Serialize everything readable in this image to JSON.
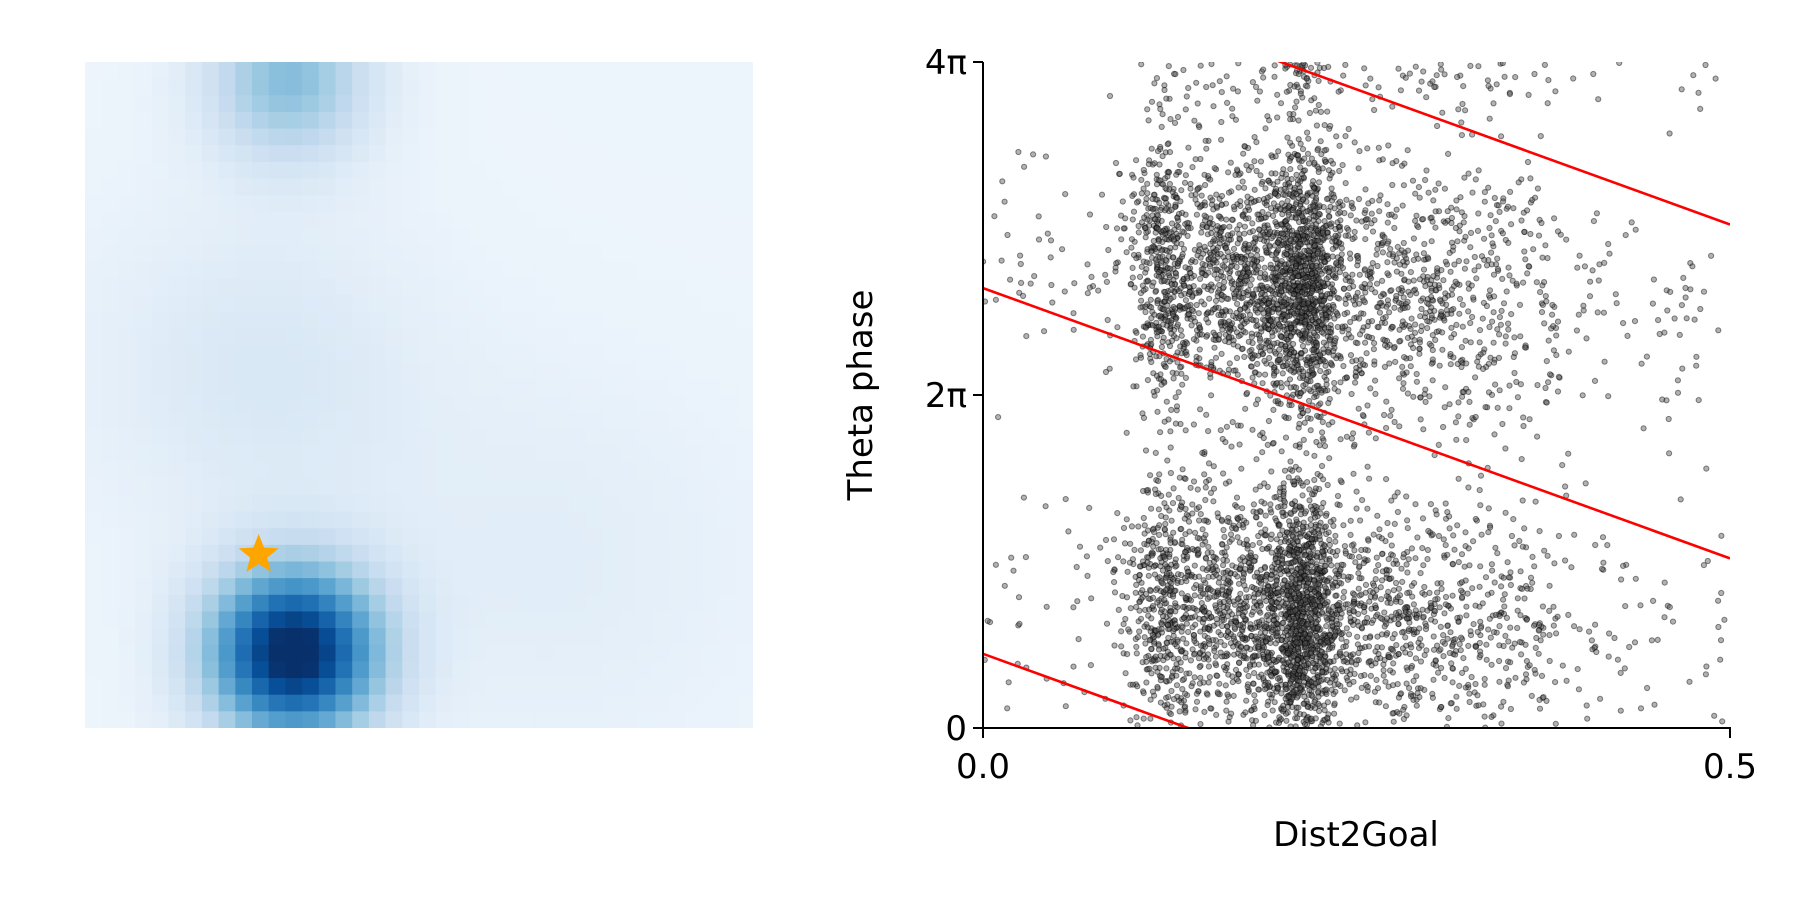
{
  "chart_data": [
    {
      "type": "heatmap",
      "colormap": "Blues",
      "axes_visible": false,
      "grid": false,
      "rows": 40,
      "cols": 40,
      "intensity_peaks": [
        {
          "col": 12.5,
          "row": 35.5,
          "intensity": 1.0,
          "spread": 3.6
        },
        {
          "col": 12.2,
          "row": 1.0,
          "intensity": 0.38,
          "spread": 3.4
        },
        {
          "col": 10.5,
          "row": 18.5,
          "intensity": 0.1,
          "spread": 7.0
        },
        {
          "col": 28.0,
          "row": 30.0,
          "intensity": 0.06,
          "spread": 8.0
        }
      ],
      "background_intensity": 0.05,
      "marker": {
        "shape": "star",
        "color": "#FFA500",
        "col": 10.4,
        "row": 29.6
      }
    },
    {
      "type": "scatter",
      "xlabel": "Dist2Goal",
      "ylabel": "Theta phase",
      "xlim": [
        0.0,
        0.5
      ],
      "ylim": [
        0,
        12.566
      ],
      "xticks": [
        {
          "value": 0.0,
          "label": "0.0"
        },
        {
          "value": 0.5,
          "label": "0.5"
        }
      ],
      "yticks": [
        {
          "value": 0,
          "label": "0"
        },
        {
          "value": 6.283,
          "label": "2π"
        },
        {
          "value": 12.566,
          "label": "4π"
        }
      ],
      "grid": false,
      "point_color": "#000000",
      "point_alpha": 0.45,
      "point_count": 6500,
      "point_distribution_note_free": true,
      "density_bands": [
        {
          "x_center": 0.12,
          "x_width": 0.01,
          "weight": 0.1
        },
        {
          "x_center": 0.175,
          "x_width": 0.035,
          "weight": 0.3
        },
        {
          "x_center": 0.215,
          "x_width": 0.012,
          "weight": 0.25
        },
        {
          "x_center": 0.29,
          "x_width": 0.05,
          "weight": 0.2
        },
        {
          "x_center": 0.25,
          "x_width": 0.25,
          "weight": 0.15
        }
      ],
      "fit_lines": [
        {
          "x": [
            0.0,
            0.5
          ],
          "y": [
            1.4,
            -3.7
          ],
          "color": "#ff0000"
        },
        {
          "x": [
            0.0,
            0.5
          ],
          "y": [
            8.3,
            3.2
          ],
          "color": "#ff0000"
        },
        {
          "x": [
            0.0,
            0.5
          ],
          "y": [
            14.6,
            9.5
          ],
          "color": "#ff0000"
        }
      ]
    }
  ]
}
